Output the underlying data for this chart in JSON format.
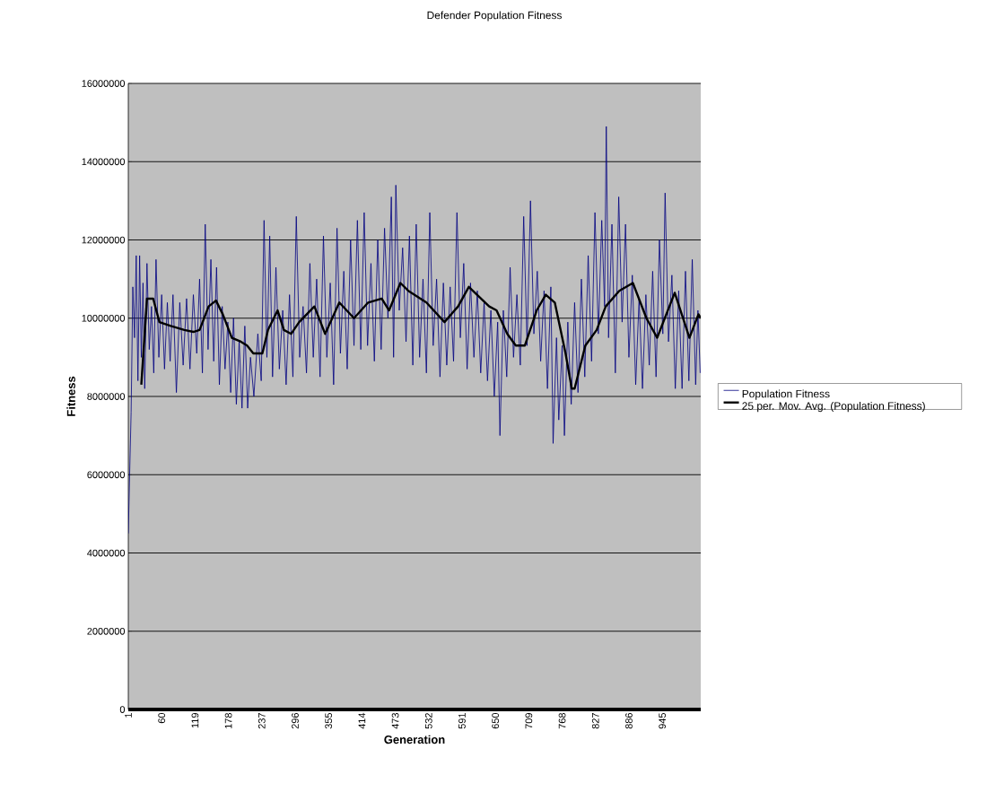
{
  "chart_data": {
    "type": "line",
    "title": "Defender Population Fitness",
    "xlabel": "Generation",
    "ylabel": "Fitness",
    "xlim": [
      1,
      1013
    ],
    "xticks": [
      1,
      60,
      119,
      178,
      237,
      296,
      355,
      414,
      473,
      532,
      591,
      650,
      709,
      768,
      827,
      886,
      945
    ],
    "ylim": [
      0,
      16000000
    ],
    "yticks": [
      0,
      2000000,
      4000000,
      6000000,
      8000000,
      10000000,
      12000000,
      14000000,
      16000000
    ],
    "grid": "y",
    "legend": "right",
    "series": [
      {
        "name": "Population Fitness",
        "color": "#000080",
        "x": [
          1,
          3,
          6,
          9,
          12,
          15,
          18,
          21,
          24,
          27,
          30,
          34,
          38,
          42,
          46,
          50,
          55,
          60,
          65,
          70,
          75,
          80,
          86,
          92,
          98,
          104,
          110,
          116,
          122,
          127,
          132,
          137,
          142,
          147,
          152,
          157,
          162,
          167,
          172,
          177,
          182,
          187,
          192,
          197,
          202,
          207,
          212,
          217,
          223,
          230,
          236,
          241,
          246,
          251,
          256,
          262,
          268,
          274,
          280,
          286,
          292,
          298,
          304,
          310,
          316,
          322,
          328,
          334,
          340,
          346,
          352,
          358,
          364,
          370,
          376,
          382,
          388,
          394,
          400,
          406,
          412,
          418,
          424,
          430,
          436,
          442,
          448,
          454,
          460,
          466,
          470,
          474,
          480,
          486,
          492,
          498,
          504,
          510,
          516,
          522,
          528,
          534,
          540,
          546,
          552,
          558,
          564,
          570,
          576,
          582,
          588,
          594,
          600,
          606,
          612,
          618,
          624,
          630,
          636,
          642,
          648,
          654,
          658,
          664,
          670,
          676,
          682,
          688,
          694,
          700,
          706,
          712,
          718,
          724,
          730,
          736,
          742,
          748,
          752,
          758,
          762,
          768,
          772,
          778,
          784,
          790,
          796,
          802,
          808,
          814,
          820,
          826,
          832,
          838,
          843,
          846,
          850,
          856,
          862,
          868,
          874,
          880,
          886,
          892,
          898,
          904,
          910,
          916,
          922,
          928,
          934,
          940,
          946,
          950,
          956,
          962,
          968,
          974,
          980,
          986,
          992,
          998,
          1004,
          1008,
          1012
        ],
        "values": [
          4500000,
          5800000,
          7600000,
          10800000,
          9500000,
          11600000,
          8400000,
          11600000,
          9000000,
          10900000,
          8200000,
          11400000,
          9200000,
          10300000,
          8600000,
          11500000,
          9000000,
          10600000,
          8700000,
          10400000,
          8900000,
          10600000,
          8100000,
          10400000,
          8800000,
          10500000,
          8700000,
          10600000,
          9100000,
          11000000,
          8600000,
          12400000,
          9200000,
          11500000,
          8900000,
          11300000,
          8300000,
          10300000,
          8700000,
          9900000,
          8100000,
          10000000,
          7800000,
          9400000,
          7700000,
          9800000,
          7700000,
          9000000,
          8000000,
          9600000,
          8400000,
          12500000,
          9000000,
          12100000,
          8500000,
          11300000,
          8700000,
          10200000,
          8300000,
          10600000,
          8500000,
          12600000,
          9000000,
          10300000,
          8600000,
          11400000,
          9000000,
          11000000,
          8500000,
          12100000,
          9000000,
          10900000,
          8300000,
          12300000,
          9100000,
          11200000,
          8700000,
          12000000,
          9300000,
          12500000,
          9200000,
          12700000,
          9300000,
          11400000,
          8900000,
          12000000,
          9200000,
          12300000,
          10000000,
          13100000,
          9000000,
          13400000,
          10200000,
          11800000,
          9400000,
          12100000,
          8800000,
          12400000,
          9000000,
          11000000,
          8600000,
          12700000,
          9300000,
          11000000,
          8500000,
          10900000,
          8800000,
          10800000,
          8900000,
          12700000,
          9500000,
          11400000,
          8700000,
          10900000,
          9000000,
          10700000,
          8600000,
          10400000,
          8400000,
          10200000,
          8000000,
          9900000,
          7000000,
          10200000,
          8500000,
          11300000,
          9000000,
          10600000,
          8800000,
          12600000,
          9300000,
          13000000,
          9600000,
          11200000,
          8900000,
          10700000,
          8200000,
          10800000,
          6800000,
          9500000,
          7400000,
          9300000,
          7000000,
          9900000,
          7800000,
          10400000,
          8100000,
          11000000,
          8500000,
          11600000,
          8900000,
          12700000,
          9600000,
          12500000,
          10300000,
          14900000,
          9500000,
          12400000,
          8600000,
          13100000,
          9900000,
          12400000,
          9000000,
          11100000,
          8300000,
          10500000,
          8200000,
          10600000,
          8800000,
          11200000,
          8500000,
          12000000,
          9600000,
          13200000,
          9400000,
          11100000,
          8200000,
          10700000,
          8200000,
          11200000,
          8400000,
          11500000,
          8300000,
          10200000,
          8600000
        ]
      },
      {
        "name": "25 per. Mov. Avg. (Population Fitness)",
        "color": "#000000",
        "x": [
          24,
          34,
          45,
          56,
          76,
          100,
          116,
          127,
          143,
          156,
          168,
          184,
          200,
          211,
          222,
          238,
          248,
          265,
          276,
          289,
          303,
          330,
          349,
          374,
          400,
          425,
          449,
          462,
          482,
          496,
          528,
          560,
          584,
          603,
          639,
          652,
          671,
          686,
          702,
          723,
          739,
          755,
          774,
          785,
          790,
          809,
          829,
          845,
          869,
          893,
          917,
          936,
          967,
          993,
          1009,
          1013
        ],
        "values": [
          8300000,
          10500000,
          10500000,
          9900000,
          9800000,
          9700000,
          9650000,
          9700000,
          10300000,
          10450000,
          10100000,
          9500000,
          9400000,
          9300000,
          9100000,
          9100000,
          9700000,
          10200000,
          9700000,
          9600000,
          9900000,
          10300000,
          9600000,
          10400000,
          10000000,
          10400000,
          10500000,
          10200000,
          10900000,
          10700000,
          10400000,
          9900000,
          10300000,
          10800000,
          10300000,
          10200000,
          9600000,
          9300000,
          9300000,
          10200000,
          10600000,
          10400000,
          9100000,
          8200000,
          8200000,
          9300000,
          9700000,
          10300000,
          10700000,
          10900000,
          10000000,
          9500000,
          10650000,
          9500000,
          10100000,
          10000000
        ]
      }
    ]
  }
}
